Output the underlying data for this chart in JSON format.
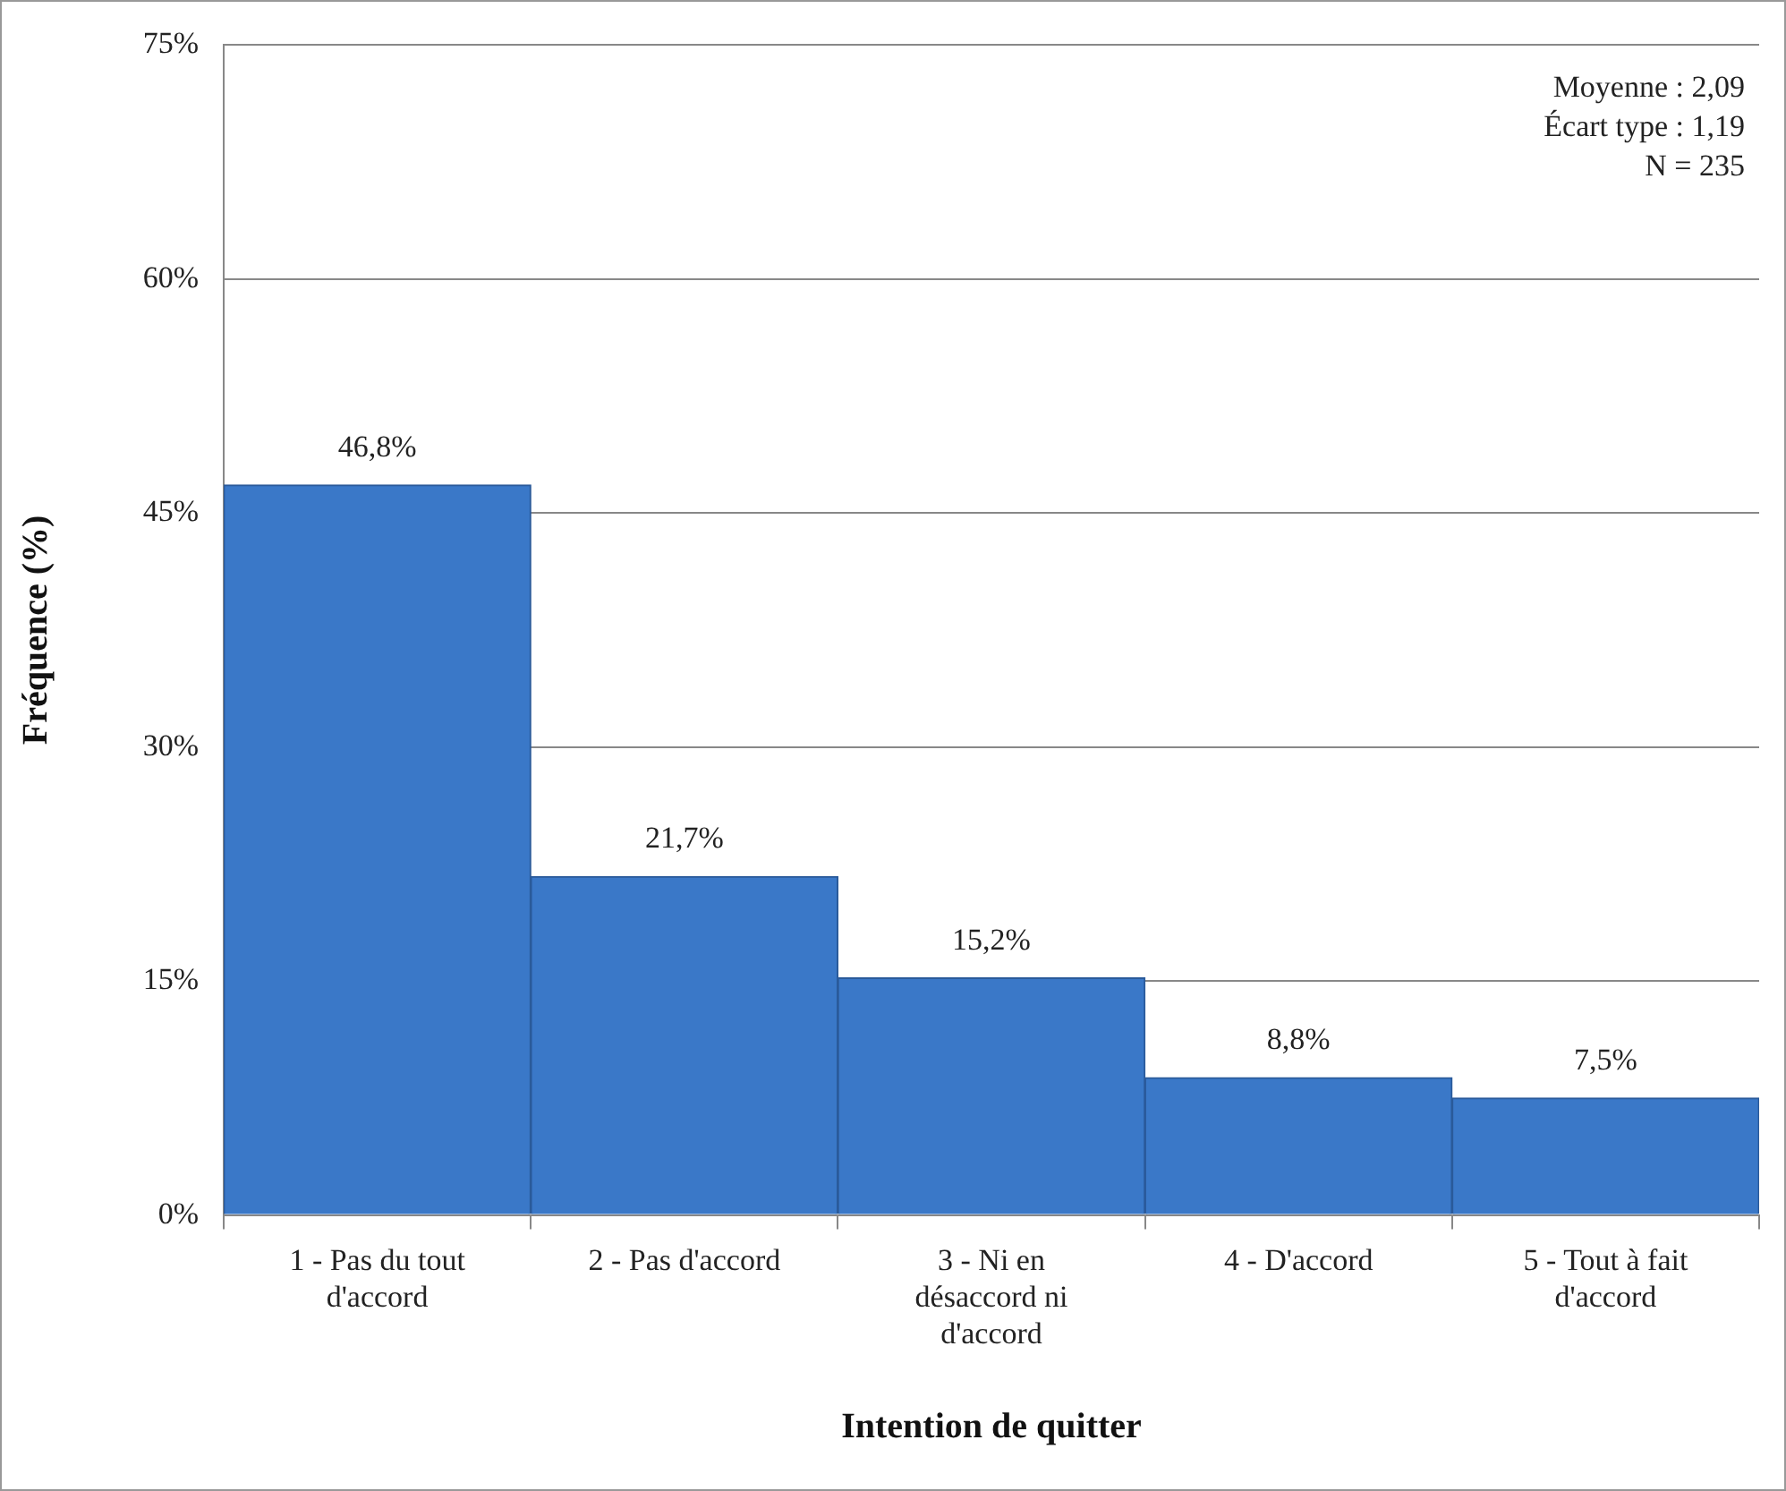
{
  "chart_data": {
    "type": "bar",
    "xlabel": "Intention de quitter",
    "ylabel": "Fréquence (%)",
    "categories": [
      "1 - Pas du tout d'accord",
      "2 - Pas d'accord",
      "3 - Ni en désaccord ni d'accord",
      "4 - D'accord",
      "5 - Tout à fait d'accord"
    ],
    "values": [
      46.8,
      21.7,
      15.2,
      8.8,
      7.5
    ],
    "value_labels": [
      "46,8%",
      "21,7%",
      "15,2%",
      "8,8%",
      "7,5%"
    ],
    "color": "#3a78c8",
    "ylim": [
      0,
      75
    ],
    "yticks": [
      {
        "value": 0,
        "label": "0%"
      },
      {
        "value": 15,
        "label": "15%"
      },
      {
        "value": 30,
        "label": "30%"
      },
      {
        "value": 45,
        "label": "45%"
      },
      {
        "value": 60,
        "label": "60%"
      },
      {
        "value": 75,
        "label": "75%"
      }
    ],
    "grid": "y",
    "annotations": [
      "Moyenne : 2,09",
      "Écart type : 1,19",
      "N = 235"
    ]
  }
}
